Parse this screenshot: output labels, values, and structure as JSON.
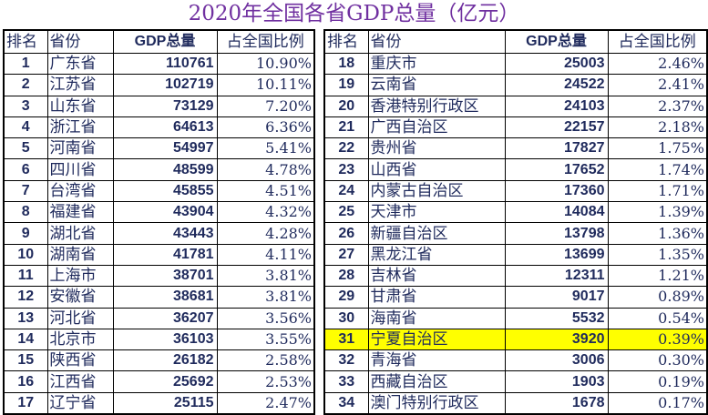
{
  "title": "2020年全国各省GDP总量（亿元）",
  "colors": {
    "title": "#7030a0",
    "text": "#1f2a5c",
    "highlight": "#ffff00"
  },
  "headers": {
    "rank": "排名",
    "province": "省份",
    "gdp": "GDP总量",
    "share": "占全国比例"
  },
  "left_rows": [
    {
      "rank": "1",
      "province": "广东省",
      "gdp": "110761",
      "share": "10.90%"
    },
    {
      "rank": "2",
      "province": "江苏省",
      "gdp": "102719",
      "share": "10.11%"
    },
    {
      "rank": "3",
      "province": "山东省",
      "gdp": "73129",
      "share": "7.20%"
    },
    {
      "rank": "4",
      "province": "浙江省",
      "gdp": "64613",
      "share": "6.36%"
    },
    {
      "rank": "5",
      "province": "河南省",
      "gdp": "54997",
      "share": "5.41%"
    },
    {
      "rank": "6",
      "province": "四川省",
      "gdp": "48599",
      "share": "4.78%"
    },
    {
      "rank": "7",
      "province": "台湾省",
      "gdp": "45855",
      "share": "4.51%"
    },
    {
      "rank": "8",
      "province": "福建省",
      "gdp": "43904",
      "share": "4.32%"
    },
    {
      "rank": "9",
      "province": "湖北省",
      "gdp": "43443",
      "share": "4.28%"
    },
    {
      "rank": "10",
      "province": "湖南省",
      "gdp": "41781",
      "share": "4.11%"
    },
    {
      "rank": "11",
      "province": "上海市",
      "gdp": "38701",
      "share": "3.81%"
    },
    {
      "rank": "12",
      "province": "安徽省",
      "gdp": "38681",
      "share": "3.81%"
    },
    {
      "rank": "13",
      "province": "河北省",
      "gdp": "36207",
      "share": "3.56%"
    },
    {
      "rank": "14",
      "province": "北京市",
      "gdp": "36103",
      "share": "3.55%"
    },
    {
      "rank": "15",
      "province": "陕西省",
      "gdp": "26182",
      "share": "2.58%"
    },
    {
      "rank": "16",
      "province": "江西省",
      "gdp": "25692",
      "share": "2.53%"
    },
    {
      "rank": "17",
      "province": "辽宁省",
      "gdp": "25115",
      "share": "2.47%"
    }
  ],
  "right_rows": [
    {
      "rank": "18",
      "province": "重庆市",
      "gdp": "25003",
      "share": "2.46%"
    },
    {
      "rank": "19",
      "province": "云南省",
      "gdp": "24522",
      "share": "2.41%"
    },
    {
      "rank": "20",
      "province": "香港特别行政区",
      "gdp": "24103",
      "share": "2.37%"
    },
    {
      "rank": "21",
      "province": "广西自治区",
      "gdp": "22157",
      "share": "2.18%"
    },
    {
      "rank": "22",
      "province": "贵州省",
      "gdp": "17827",
      "share": "1.75%"
    },
    {
      "rank": "23",
      "province": "山西省",
      "gdp": "17652",
      "share": "1.74%"
    },
    {
      "rank": "24",
      "province": "内蒙古自治区",
      "gdp": "17360",
      "share": "1.71%"
    },
    {
      "rank": "25",
      "province": "天津市",
      "gdp": "14084",
      "share": "1.39%"
    },
    {
      "rank": "26",
      "province": "新疆自治区",
      "gdp": "13798",
      "share": "1.36%"
    },
    {
      "rank": "27",
      "province": "黑龙江省",
      "gdp": "13699",
      "share": "1.35%"
    },
    {
      "rank": "28",
      "province": "吉林省",
      "gdp": "12311",
      "share": "1.21%"
    },
    {
      "rank": "29",
      "province": "甘肃省",
      "gdp": "9017",
      "share": "0.89%"
    },
    {
      "rank": "30",
      "province": "海南省",
      "gdp": "5532",
      "share": "0.54%"
    },
    {
      "rank": "31",
      "province": "宁夏自治区",
      "gdp": "3920",
      "share": "0.39%",
      "highlight": true
    },
    {
      "rank": "32",
      "province": "青海省",
      "gdp": "3006",
      "share": "0.30%"
    },
    {
      "rank": "33",
      "province": "西藏自治区",
      "gdp": "1903",
      "share": "0.19%"
    },
    {
      "rank": "34",
      "province": "澳门特别行政区",
      "gdp": "1678",
      "share": "0.17%"
    }
  ]
}
